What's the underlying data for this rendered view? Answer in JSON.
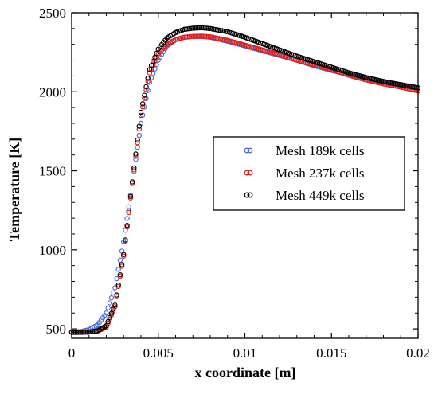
{
  "chart_data": {
    "type": "scatter",
    "title": "",
    "xlabel": "x coordinate [m]",
    "ylabel": "Temperature [K]",
    "xlim": [
      0,
      0.02
    ],
    "ylim": [
      440,
      2500
    ],
    "xticks": [
      0,
      0.005,
      0.01,
      0.015,
      0.02
    ],
    "xtick_labels": [
      "0",
      "0.005",
      "0.01",
      "0.015",
      "0.02"
    ],
    "yticks": [
      500,
      1000,
      1500,
      2000,
      2500
    ],
    "ytick_labels": [
      "500",
      "1000",
      "1500",
      "2000",
      "2500"
    ],
    "grid": false,
    "legend_position": "right-middle",
    "series": [
      {
        "name": "Mesh 189k cells",
        "color": "#4f6fd6",
        "marker": "open-circle",
        "points": [
          [
            0,
            480
          ],
          [
            0.0005,
            482
          ],
          [
            0.001,
            495
          ],
          [
            0.0015,
            525
          ],
          [
            0.002,
            600
          ],
          [
            0.0025,
            760
          ],
          [
            0.003,
            1050
          ],
          [
            0.0035,
            1420
          ],
          [
            0.004,
            1800
          ],
          [
            0.0045,
            2060
          ],
          [
            0.005,
            2200
          ],
          [
            0.0055,
            2290
          ],
          [
            0.006,
            2330
          ],
          [
            0.0065,
            2345
          ],
          [
            0.007,
            2350
          ],
          [
            0.0075,
            2350
          ],
          [
            0.008,
            2345
          ],
          [
            0.009,
            2320
          ],
          [
            0.01,
            2290
          ],
          [
            0.011,
            2260
          ],
          [
            0.012,
            2230
          ],
          [
            0.013,
            2200
          ],
          [
            0.014,
            2165
          ],
          [
            0.015,
            2135
          ],
          [
            0.016,
            2110
          ],
          [
            0.017,
            2085
          ],
          [
            0.018,
            2060
          ],
          [
            0.019,
            2040
          ],
          [
            0.02,
            2020
          ]
        ]
      },
      {
        "name": "Mesh 237k cells",
        "color": "#e0201c",
        "marker": "open-circle",
        "points": [
          [
            0,
            478
          ],
          [
            0.0005,
            478
          ],
          [
            0.001,
            480
          ],
          [
            0.0015,
            486
          ],
          [
            0.002,
            510
          ],
          [
            0.0025,
            640
          ],
          [
            0.003,
            960
          ],
          [
            0.0035,
            1420
          ],
          [
            0.004,
            1850
          ],
          [
            0.0045,
            2120
          ],
          [
            0.005,
            2240
          ],
          [
            0.0055,
            2300
          ],
          [
            0.006,
            2330
          ],
          [
            0.0065,
            2345
          ],
          [
            0.007,
            2350
          ],
          [
            0.0075,
            2352
          ],
          [
            0.008,
            2348
          ],
          [
            0.009,
            2325
          ],
          [
            0.01,
            2295
          ],
          [
            0.011,
            2265
          ],
          [
            0.012,
            2235
          ],
          [
            0.013,
            2200
          ],
          [
            0.014,
            2170
          ],
          [
            0.015,
            2140
          ],
          [
            0.016,
            2105
          ],
          [
            0.017,
            2075
          ],
          [
            0.018,
            2050
          ],
          [
            0.019,
            2030
          ],
          [
            0.02,
            2005
          ]
        ]
      },
      {
        "name": "Mesh 449k cells",
        "color": "#000000",
        "marker": "open-circle",
        "points": [
          [
            0,
            478
          ],
          [
            0.0005,
            478
          ],
          [
            0.001,
            480
          ],
          [
            0.0015,
            488
          ],
          [
            0.002,
            520
          ],
          [
            0.0025,
            650
          ],
          [
            0.003,
            970
          ],
          [
            0.0035,
            1430
          ],
          [
            0.004,
            1870
          ],
          [
            0.0045,
            2140
          ],
          [
            0.005,
            2270
          ],
          [
            0.0055,
            2340
          ],
          [
            0.006,
            2375
          ],
          [
            0.0065,
            2395
          ],
          [
            0.007,
            2402
          ],
          [
            0.0075,
            2405
          ],
          [
            0.008,
            2400
          ],
          [
            0.009,
            2380
          ],
          [
            0.01,
            2345
          ],
          [
            0.011,
            2305
          ],
          [
            0.012,
            2265
          ],
          [
            0.013,
            2225
          ],
          [
            0.014,
            2190
          ],
          [
            0.015,
            2155
          ],
          [
            0.016,
            2120
          ],
          [
            0.017,
            2090
          ],
          [
            0.018,
            2065
          ],
          [
            0.019,
            2045
          ],
          [
            0.02,
            2025
          ]
        ]
      }
    ]
  }
}
